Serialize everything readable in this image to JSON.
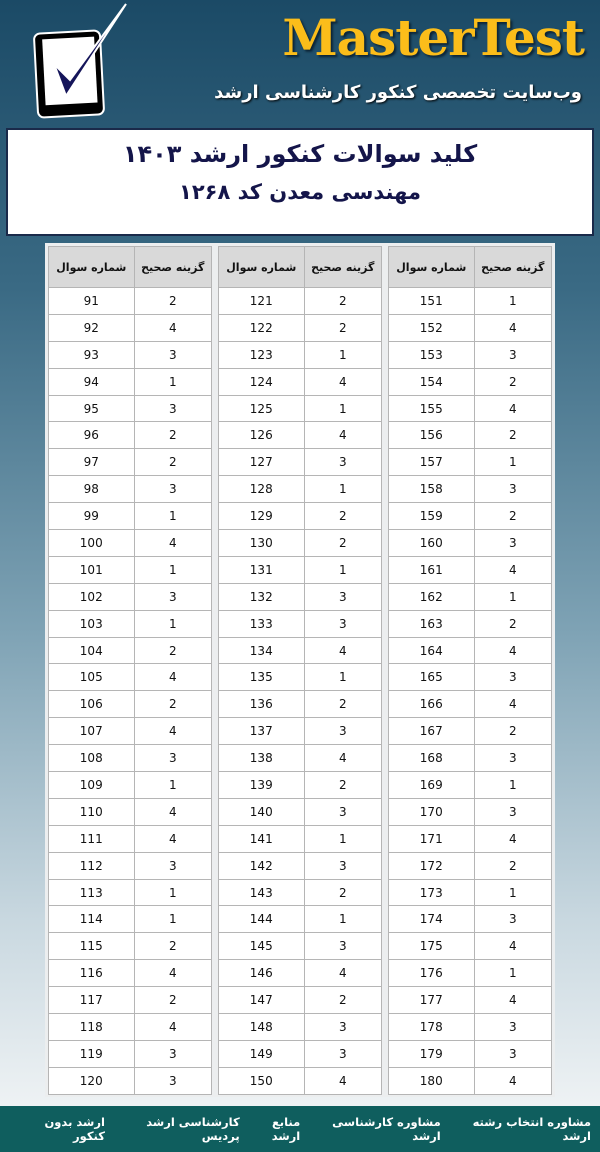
{
  "header": {
    "brand": "MasterTest",
    "tagline": "وب‌سایت تخصصی کنکور کارشناسی ارشد",
    "logo_icon": "checkbox-check-icon"
  },
  "title": {
    "line1": "کلید سوالات کنکور ارشد ۱۴۰۳",
    "line2": "مهندسی معدن کد ۱۲۶۸"
  },
  "table_headers": {
    "question": "شماره سوال",
    "answer": "گزینه صحیح"
  },
  "answer_tables": [
    {
      "start": 91,
      "answers": [
        2,
        4,
        3,
        1,
        3,
        2,
        2,
        3,
        1,
        4,
        1,
        3,
        1,
        2,
        4,
        2,
        4,
        3,
        1,
        4,
        4,
        3,
        1,
        1,
        2,
        4,
        2,
        4,
        3,
        3
      ]
    },
    {
      "start": 121,
      "answers": [
        2,
        2,
        1,
        4,
        1,
        4,
        3,
        1,
        2,
        2,
        1,
        3,
        3,
        4,
        1,
        2,
        3,
        4,
        2,
        3,
        1,
        3,
        2,
        1,
        3,
        4,
        2,
        3,
        3,
        4
      ]
    },
    {
      "start": 151,
      "answers": [
        1,
        4,
        3,
        2,
        4,
        2,
        1,
        3,
        2,
        3,
        4,
        1,
        2,
        4,
        3,
        4,
        2,
        3,
        1,
        3,
        4,
        2,
        1,
        3,
        4,
        1,
        4,
        3,
        3,
        4
      ]
    }
  ],
  "footer": {
    "links": [
      "ارشد بدون کنکور",
      "کارشناسی ارشد پردیس",
      "منابع ارشد",
      "مشاوره کارشناسی ارشد",
      "مشاوره انتخاب رشته ارشد"
    ]
  },
  "colors": {
    "brand": "#fbbd1a",
    "footer": "#0f5e5e",
    "title": "#14154a"
  }
}
